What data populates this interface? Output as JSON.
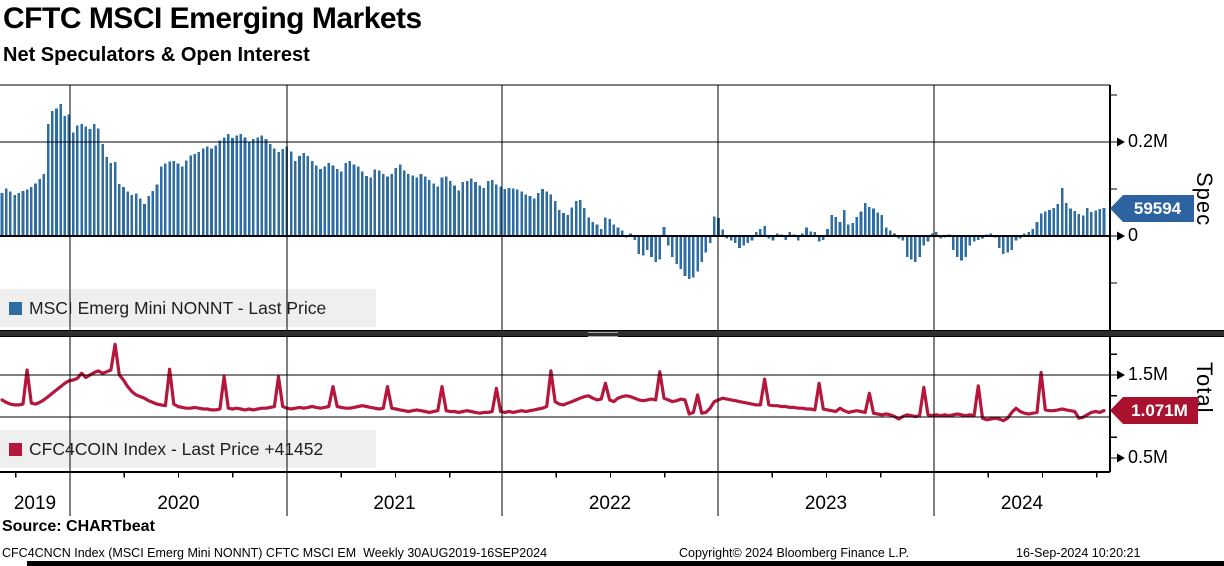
{
  "header": {
    "title": "CFTC MSCI Emerging Markets",
    "subtitle": "Net Speculators & Open Interest"
  },
  "source_line": "Source: CHARTbeat",
  "footer": {
    "left": "CFC4CNCN Index (MSCI Emerg Mini NONNT) CFTC MSCI EM  Weekly 30AUG2019-16SEP2024",
    "center": "Copyright© 2024 Bloomberg Finance L.P.",
    "right": "16-Sep-2024 10:20:21"
  },
  "x_axis": {
    "years": [
      "2019",
      "2020",
      "2021",
      "2022",
      "2023",
      "2024"
    ]
  },
  "chart_data": [
    {
      "type": "bar",
      "name": "Net Speculators",
      "legend": "MSCI Emerg Mini NONNT - Last Price",
      "axis_label": "Spec",
      "last_label": "59594",
      "last_value": 59594,
      "color": "#2e6ca4",
      "tag_color": "#2d63a0",
      "ylim_k": [
        -200,
        325
      ],
      "y_axis": {
        "major": [
          {
            "label": "0.2M",
            "value": 200
          },
          {
            "label": "0",
            "value": 0
          }
        ],
        "minor": [
          300,
          100,
          -100
        ],
        "units": "thousands of contracts"
      },
      "values_k": [
        92,
        101,
        95,
        87,
        91,
        96,
        99,
        104,
        112,
        121,
        132,
        238,
        266,
        271,
        281,
        255,
        258,
        220,
        235,
        238,
        233,
        228,
        238,
        229,
        196,
        168,
        155,
        157,
        111,
        104,
        95,
        87,
        90,
        80,
        68,
        85,
        96,
        110,
        148,
        154,
        158,
        160,
        154,
        148,
        161,
        171,
        174,
        179,
        186,
        190,
        186,
        193,
        203,
        210,
        217,
        208,
        214,
        217,
        210,
        200,
        206,
        210,
        214,
        206,
        196,
        186,
        179,
        185,
        190,
        180,
        160,
        170,
        177,
        170,
        160,
        150,
        143,
        148,
        155,
        150,
        143,
        137,
        155,
        160,
        152,
        148,
        137,
        128,
        124,
        142,
        139,
        132,
        127,
        132,
        145,
        152,
        139,
        132,
        129,
        125,
        132,
        127,
        119,
        112,
        105,
        125,
        127,
        117,
        107,
        97,
        115,
        117,
        122,
        115,
        107,
        102,
        117,
        119,
        110,
        105,
        100,
        102,
        101,
        99,
        95,
        88,
        85,
        80,
        92,
        100,
        95,
        88,
        75,
        55,
        49,
        45,
        61,
        74,
        77,
        60,
        39,
        30,
        25,
        15,
        39,
        36,
        25,
        18,
        12,
        -3,
        5,
        -8,
        -38,
        -42,
        -30,
        -45,
        -55,
        -50,
        19,
        -20,
        -45,
        -60,
        -70,
        -85,
        -92,
        -88,
        -75,
        -55,
        -35,
        -15,
        42,
        38,
        14,
        -5,
        -10,
        -15,
        -25,
        -20,
        -15,
        -10,
        8,
        15,
        21,
        -5,
        -10,
        5,
        3,
        -8,
        8,
        3,
        -10,
        5,
        18,
        10,
        8,
        -12,
        -8,
        15,
        45,
        40,
        30,
        55,
        25,
        28,
        40,
        52,
        70,
        62,
        58,
        50,
        45,
        18,
        12,
        5,
        -5,
        -10,
        -45,
        -50,
        -55,
        -45,
        -20,
        -12,
        5,
        8,
        -5,
        -3,
        3,
        -30,
        -45,
        -52,
        -45,
        -20,
        -12,
        -8,
        -5,
        3,
        5,
        -3,
        -25,
        -38,
        -35,
        -30,
        -10,
        -5,
        5,
        8,
        15,
        30,
        48,
        52,
        55,
        60,
        68,
        102,
        70,
        58,
        53,
        47,
        44,
        60,
        51,
        54,
        57,
        59.594
      ]
    },
    {
      "type": "line",
      "name": "Open Interest",
      "legend": "CFC4COIN Index - Last Price +41452",
      "axis_label": "Total",
      "last_label": "1.071M",
      "last_value": 1071000,
      "color": "#b5173c",
      "tag_color": "#a8122f",
      "ylim_m": [
        0.33,
        1.96
      ],
      "y_axis": {
        "major": [
          {
            "label": "1.5M",
            "value": 1.5
          },
          {
            "label": "0.5M",
            "value": 0.5
          }
        ],
        "minor": [
          1.75,
          1.25,
          0.75
        ],
        "units": "millions of contracts"
      },
      "values_m": [
        1.2,
        1.17,
        1.15,
        1.14,
        1.14,
        1.15,
        1.56,
        1.16,
        1.15,
        1.17,
        1.2,
        1.24,
        1.28,
        1.32,
        1.36,
        1.4,
        1.43,
        1.44,
        1.46,
        1.52,
        1.47,
        1.5,
        1.53,
        1.55,
        1.52,
        1.54,
        1.56,
        1.87,
        1.5,
        1.44,
        1.36,
        1.3,
        1.26,
        1.24,
        1.22,
        1.19,
        1.17,
        1.15,
        1.14,
        1.13,
        1.57,
        1.15,
        1.12,
        1.11,
        1.1,
        1.1,
        1.11,
        1.1,
        1.09,
        1.09,
        1.08,
        1.08,
        1.09,
        1.48,
        1.1,
        1.09,
        1.1,
        1.09,
        1.08,
        1.09,
        1.08,
        1.09,
        1.1,
        1.1,
        1.11,
        1.12,
        1.48,
        1.12,
        1.1,
        1.09,
        1.1,
        1.11,
        1.1,
        1.11,
        1.12,
        1.11,
        1.1,
        1.11,
        1.12,
        1.36,
        1.12,
        1.11,
        1.1,
        1.1,
        1.11,
        1.12,
        1.13,
        1.12,
        1.11,
        1.1,
        1.09,
        1.1,
        1.36,
        1.1,
        1.09,
        1.08,
        1.07,
        1.06,
        1.07,
        1.08,
        1.07,
        1.06,
        1.05,
        1.06,
        1.07,
        1.36,
        1.07,
        1.06,
        1.06,
        1.05,
        1.06,
        1.07,
        1.06,
        1.05,
        1.04,
        1.05,
        1.05,
        1.06,
        1.34,
        1.06,
        1.05,
        1.06,
        1.05,
        1.06,
        1.07,
        1.06,
        1.07,
        1.08,
        1.09,
        1.1,
        1.12,
        1.55,
        1.18,
        1.15,
        1.14,
        1.16,
        1.18,
        1.2,
        1.22,
        1.24,
        1.25,
        1.22,
        1.2,
        1.21,
        1.4,
        1.2,
        1.18,
        1.22,
        1.24,
        1.25,
        1.24,
        1.22,
        1.2,
        1.19,
        1.2,
        1.21,
        1.2,
        1.54,
        1.22,
        1.2,
        1.18,
        1.19,
        1.21,
        1.2,
        1.03,
        1.05,
        1.26,
        1.04,
        1.05,
        1.1,
        1.18,
        1.2,
        1.22,
        1.21,
        1.2,
        1.19,
        1.18,
        1.17,
        1.16,
        1.15,
        1.14,
        1.14,
        1.45,
        1.14,
        1.13,
        1.13,
        1.12,
        1.12,
        1.11,
        1.11,
        1.1,
        1.1,
        1.09,
        1.09,
        1.08,
        1.4,
        1.09,
        1.08,
        1.07,
        1.06,
        1.1,
        1.07,
        1.05,
        1.06,
        1.07,
        1.06,
        1.05,
        1.28,
        1.04,
        1.03,
        1.02,
        1.03,
        1.02,
        1.0,
        0.97,
        1.0,
        1.02,
        1.01,
        1.0,
        1.01,
        1.35,
        1.02,
        1.01,
        1.02,
        1.01,
        1.02,
        1.01,
        1.02,
        1.03,
        1.02,
        1.01,
        1.02,
        1.01,
        1.37,
        0.98,
        0.96,
        0.97,
        0.98,
        0.97,
        0.95,
        0.98,
        1.05,
        1.1,
        1.06,
        1.04,
        1.03,
        1.04,
        1.05,
        1.53,
        1.08,
        1.07,
        1.07,
        1.08,
        1.09,
        1.08,
        1.07,
        1.06,
        0.98,
        0.99,
        1.02,
        1.05,
        1.06,
        1.05,
        1.071
      ]
    }
  ]
}
